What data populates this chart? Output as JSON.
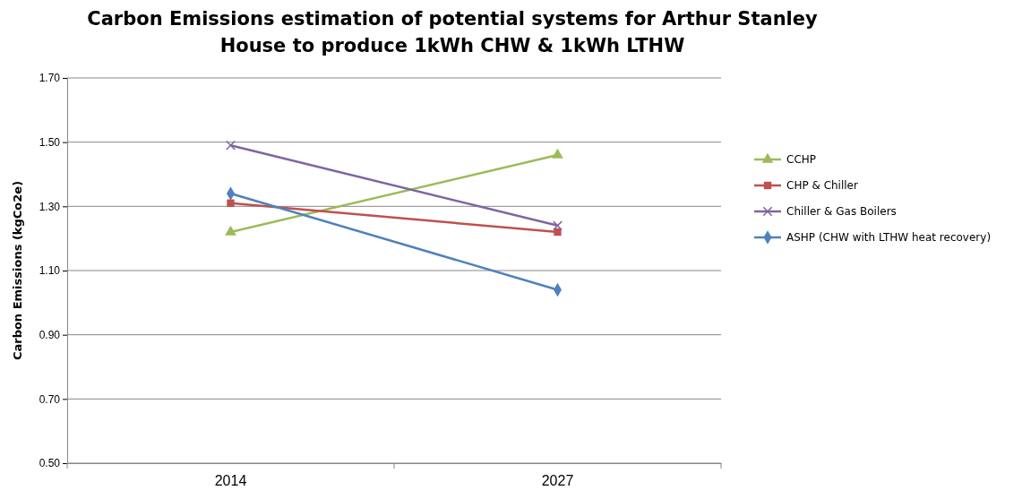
{
  "chart_data": {
    "type": "line",
    "title": "Carbon Emissions estimation of potential systems for Arthur Stanley House to produce 1kWh CHW & 1kWh LTHW",
    "ylabel": "Carbon Emissions (kgCo2e)",
    "categories": [
      "2014",
      "2027"
    ],
    "series": [
      {
        "name": "CCHP",
        "color": "#9bbb59",
        "marker": "triangle",
        "values": [
          1.22,
          1.46
        ]
      },
      {
        "name": "CHP & Chiller",
        "color": "#c0504d",
        "marker": "square",
        "values": [
          1.31,
          1.22
        ]
      },
      {
        "name": "Chiller & Gas Boilers",
        "color": "#8064a2",
        "marker": "cross",
        "values": [
          1.49,
          1.24
        ]
      },
      {
        "name": "ASHP (CHW with LTHW heat recovery)",
        "color": "#4f81bd",
        "marker": "diamond",
        "values": [
          1.34,
          1.04
        ]
      }
    ],
    "ylim": [
      0.5,
      1.7
    ],
    "yticks": [
      {
        "value": 0.5,
        "label": "0.50"
      },
      {
        "value": 0.7,
        "label": "0.70"
      },
      {
        "value": 0.9,
        "label": "0.90"
      },
      {
        "value": 1.1,
        "label": "1.10"
      },
      {
        "value": 1.3,
        "label": "1.30"
      },
      {
        "value": 1.5,
        "label": "1.50"
      },
      {
        "value": 1.7,
        "label": "1.70"
      }
    ],
    "grid": "y",
    "legend": "right",
    "line_style": "solid"
  }
}
